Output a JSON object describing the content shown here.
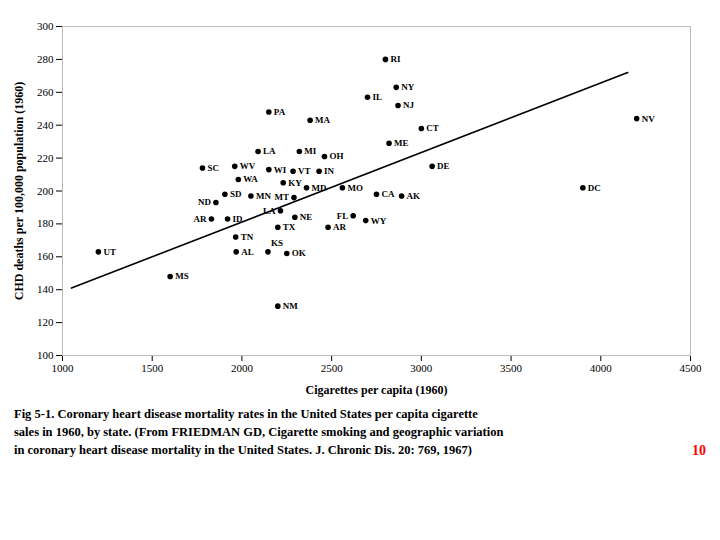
{
  "chart_data": {
    "type": "scatter",
    "caption": [
      "Fig 5-1. Coronary heart disease mortality rates in the United States per capita cigarette",
      "sales in 1960, by state. (From FRIEDMAN GD, Cigarette smoking and geographic variation",
      "in coronary heart disease mortality in the United States. J. Chronic Dis. 20: 769, 1967)"
    ],
    "annotations": [
      {
        "text": "10",
        "color": "red"
      }
    ],
    "xlabel": "Cigarettes per capita (1960)",
    "ylabel": "CHD deaths per 100,000 population (1960)",
    "xlim": [
      1000,
      4500
    ],
    "ylim": [
      100,
      300
    ],
    "xticks": [
      1000,
      1500,
      2000,
      2500,
      3000,
      3500,
      4000,
      4500
    ],
    "yticks": [
      100,
      120,
      140,
      160,
      180,
      200,
      220,
      240,
      260,
      280,
      300
    ],
    "color": "#000000",
    "marker": "circle",
    "data_labels": true,
    "labels": [
      "RI",
      "NY",
      "IL",
      "NJ",
      "PA",
      "MA",
      "NV",
      "CT",
      "ME",
      "LA",
      "MI",
      "OH",
      "SC",
      "WV",
      "WI",
      "VT",
      "IN",
      "DE",
      "DC",
      "WA",
      "KY",
      "MD",
      "MO",
      "CA",
      "AK",
      "SD",
      "MN",
      "MT",
      "ND",
      "LA",
      "NE",
      "ID",
      "FL",
      "WY",
      "AR",
      "TX",
      "AR",
      "TN",
      "AL",
      "KS",
      "OK",
      "UT",
      "MS",
      "NM"
    ],
    "x": [
      2800,
      2860,
      2700,
      2870,
      2150,
      2380,
      4200,
      3000,
      2820,
      2090,
      2320,
      2460,
      1780,
      1960,
      2150,
      2285,
      2430,
      3060,
      3900,
      1980,
      2230,
      2360,
      2560,
      2750,
      2890,
      1905,
      2050,
      2290,
      1855,
      2215,
      2295,
      1920,
      2620,
      2690,
      1830,
      2200,
      2480,
      1965,
      1968,
      2145,
      2250,
      1200,
      1600,
      2200
    ],
    "values": [
      280,
      263,
      257,
      252,
      248,
      243,
      244,
      238,
      229,
      224,
      224,
      221,
      214,
      215,
      213,
      212,
      212,
      215,
      202,
      207,
      205,
      202,
      202,
      198,
      197,
      198,
      197,
      196,
      193,
      188,
      184,
      183,
      185,
      182,
      183,
      178,
      178,
      172,
      163,
      163,
      162,
      163,
      148,
      130
    ],
    "regression_line": {
      "type": "line",
      "color": "#000000",
      "x": [
        1050,
        4150
      ],
      "values": [
        141,
        272
      ]
    }
  }
}
